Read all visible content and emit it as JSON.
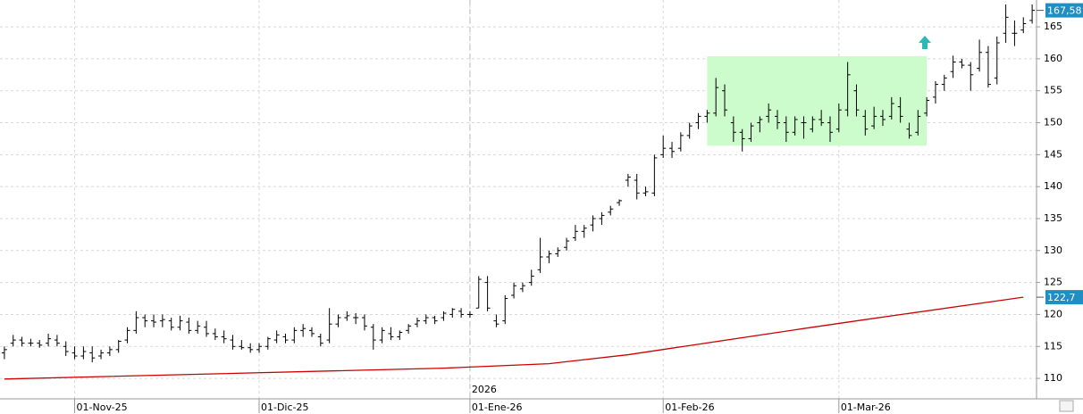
{
  "chart_data": {
    "type": "ohlc",
    "bars": [
      [
        114,
        115,
        113,
        114.5
      ],
      [
        115.5,
        116.8,
        115,
        116
      ],
      [
        116,
        116.5,
        115,
        115.5
      ],
      [
        115.5,
        116.2,
        115,
        115.5
      ],
      [
        115.5,
        116,
        114.8,
        115.2
      ],
      [
        115.5,
        117,
        115,
        116.2
      ],
      [
        116,
        116.8,
        115,
        115.5
      ],
      [
        115,
        115.8,
        113.5,
        114.2
      ],
      [
        114,
        115,
        113,
        113.5
      ],
      [
        113.5,
        115,
        113,
        114.2
      ],
      [
        114,
        115,
        112.5,
        113.2
      ],
      [
        113.5,
        114.5,
        113,
        114
      ],
      [
        114,
        115,
        113.5,
        114.5
      ],
      [
        114.5,
        116,
        114,
        115.8
      ],
      [
        116,
        118,
        115.5,
        117.5
      ],
      [
        117.5,
        120.5,
        117,
        119.5
      ],
      [
        119.5,
        120,
        118,
        119
      ],
      [
        119,
        120,
        118,
        118.8
      ],
      [
        119,
        120,
        118,
        119.2
      ],
      [
        119,
        119.5,
        117.5,
        118
      ],
      [
        118,
        119.8,
        117.5,
        119
      ],
      [
        118.8,
        119.5,
        117,
        117.5
      ],
      [
        117.5,
        119,
        117,
        118.2
      ],
      [
        118,
        119,
        116.5,
        117
      ],
      [
        117,
        117.8,
        116,
        116.5
      ],
      [
        116.5,
        117.5,
        115.5,
        116.2
      ],
      [
        116,
        116.8,
        114.5,
        115
      ],
      [
        115,
        116,
        114.5,
        114.8
      ],
      [
        114.8,
        115.5,
        114,
        114.5
      ],
      [
        114.5,
        115.5,
        114,
        115
      ],
      [
        115,
        116.5,
        114.5,
        116.2
      ],
      [
        116,
        117.5,
        115.5,
        116.8
      ],
      [
        116.5,
        117,
        115.5,
        116
      ],
      [
        116,
        118,
        115.5,
        117.5
      ],
      [
        117.5,
        118.5,
        116.5,
        117.8
      ],
      [
        117.5,
        118,
        116.5,
        117
      ],
      [
        116.5,
        117,
        115,
        115.5
      ],
      [
        116,
        121,
        115.5,
        118.5
      ],
      [
        118.5,
        120,
        118,
        119.5
      ],
      [
        119.5,
        120.5,
        119,
        119.8
      ],
      [
        119.5,
        120.2,
        118.5,
        119.5
      ],
      [
        119.5,
        120,
        117.5,
        118.2
      ],
      [
        118,
        118.5,
        114.5,
        116
      ],
      [
        116,
        118,
        115.5,
        117.5
      ],
      [
        117,
        118,
        116,
        116.5
      ],
      [
        116.5,
        117.5,
        116,
        117.2
      ],
      [
        117.5,
        118.5,
        117,
        118.2
      ],
      [
        118.5,
        119.5,
        118,
        119
      ],
      [
        119,
        120,
        118.5,
        119.5
      ],
      [
        119.5,
        119.8,
        118.5,
        119
      ],
      [
        119.5,
        120.5,
        119,
        120.2
      ],
      [
        120,
        121,
        119.5,
        120.8
      ],
      [
        120.5,
        121,
        119.5,
        120
      ],
      [
        120,
        120.5,
        119.5,
        120
      ],
      [
        121,
        126,
        121,
        125.5
      ],
      [
        125,
        126,
        120.5,
        121
      ],
      [
        119,
        120,
        118,
        118.5
      ],
      [
        119,
        123,
        118.5,
        122.5
      ],
      [
        123,
        125,
        122.5,
        124.5
      ],
      [
        124,
        125,
        123.5,
        124.5
      ],
      [
        125,
        127,
        124.5,
        126
      ],
      [
        127,
        132,
        126.5,
        129
      ],
      [
        129,
        130,
        128,
        129.5
      ],
      [
        129.5,
        130.5,
        129,
        130
      ],
      [
        130.5,
        132,
        130,
        131.5
      ],
      [
        132,
        134,
        131.5,
        133
      ],
      [
        133,
        134,
        132,
        133.5
      ],
      [
        134,
        135.5,
        133,
        135
      ],
      [
        135,
        136,
        134,
        135.5
      ],
      [
        136,
        137,
        135.5,
        136.5
      ],
      [
        137.5,
        138,
        137,
        137.8
      ],
      [
        141,
        142,
        140,
        141.5
      ],
      [
        141,
        142,
        138,
        139
      ],
      [
        139,
        140,
        138.5,
        139.2
      ],
      [
        139,
        145,
        138.5,
        144.5
      ],
      [
        145,
        148,
        144.5,
        146
      ],
      [
        146,
        147,
        144.5,
        145.5
      ],
      [
        146,
        148.5,
        145.5,
        148
      ],
      [
        148,
        150,
        147.5,
        149.5
      ],
      [
        150,
        151.5,
        149,
        151
      ],
      [
        151,
        152,
        150,
        151.5
      ],
      [
        151.5,
        157,
        151,
        155.5
      ],
      [
        155,
        156,
        151,
        152
      ],
      [
        150,
        151,
        147,
        148.5
      ],
      [
        148.5,
        149,
        145.5,
        147.5
      ],
      [
        147.5,
        150,
        147,
        149.5
      ],
      [
        150,
        151,
        148.5,
        150.5
      ],
      [
        151,
        153,
        150,
        152
      ],
      [
        151,
        152,
        149,
        150
      ],
      [
        150,
        151,
        147,
        148.5
      ],
      [
        148.5,
        151,
        148,
        150.5
      ],
      [
        150,
        151,
        147.5,
        150
      ],
      [
        149,
        151,
        148.5,
        150.5
      ],
      [
        150.5,
        152,
        149.5,
        150
      ],
      [
        150,
        151,
        147,
        148.5
      ],
      [
        149,
        153,
        148.5,
        152
      ],
      [
        152,
        159.5,
        151,
        157.5
      ],
      [
        155,
        156,
        151,
        152
      ],
      [
        151,
        152,
        148,
        149
      ],
      [
        149.5,
        152.5,
        149,
        151
      ],
      [
        151,
        152,
        149.5,
        150.5
      ],
      [
        151,
        154,
        150.5,
        153
      ],
      [
        152.5,
        154,
        150,
        151
      ],
      [
        149,
        150,
        147.5,
        148
      ],
      [
        148.5,
        152,
        148,
        151
      ],
      [
        151.5,
        154,
        151,
        153.5
      ],
      [
        154,
        156.5,
        153,
        156
      ],
      [
        156,
        157.5,
        155,
        157
      ],
      [
        158,
        160.5,
        157,
        159.5
      ],
      [
        159.5,
        160,
        158.5,
        159
      ],
      [
        159,
        159.5,
        155,
        157.5
      ],
      [
        158.5,
        163,
        158,
        161
      ],
      [
        161,
        162,
        155.5,
        156
      ],
      [
        157,
        163.5,
        156,
        162.5
      ],
      [
        164,
        168.5,
        162.5,
        166.5
      ],
      [
        164,
        166,
        162,
        164
      ],
      [
        164.5,
        166.5,
        164,
        165.5
      ],
      [
        166,
        168.5,
        165.5,
        167.58
      ]
    ],
    "bar_color": "#000000",
    "ma": {
      "x": [
        0,
        50,
        62,
        71,
        91,
        98,
        116
      ],
      "values": [
        109.9,
        111.6,
        112.3,
        113.7,
        117.8,
        119.2,
        122.7
      ],
      "color": "#cc0000"
    },
    "range_box": {
      "from": 80,
      "to": 105,
      "low": 146.4,
      "high": 160.4,
      "color": "#ccfccc"
    },
    "last_price": {
      "value": 167.58,
      "label": "167,58"
    },
    "ma_last": {
      "value": 122.7,
      "label": "122,7"
    },
    "label_color": "#1f8ec2",
    "xlim": [
      -0.5,
      117.5
    ],
    "xticks": [
      {
        "value": 8,
        "label": "01-Nov-25"
      },
      {
        "value": 29,
        "label": "01-Dic-25"
      },
      {
        "value": 53,
        "label": "01-Ene-26"
      },
      {
        "value": 75,
        "label": "01-Feb-26"
      },
      {
        "value": 95,
        "label": "01-Mar-26"
      }
    ],
    "year_marker": {
      "value": 53,
      "label": "2026"
    },
    "ylim": [
      106.8,
      169.2
    ],
    "yticks": [
      110,
      115,
      120,
      125,
      130,
      135,
      140,
      145,
      150,
      155,
      160,
      165
    ],
    "grid": true
  }
}
